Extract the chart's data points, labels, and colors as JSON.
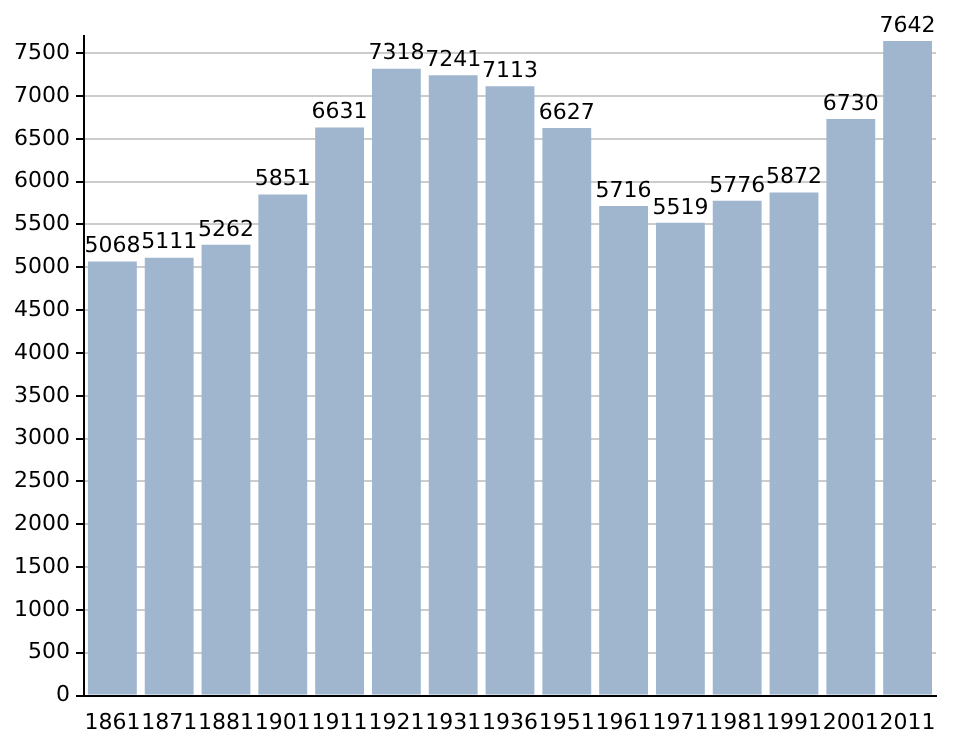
{
  "chart_data": {
    "type": "bar",
    "categories": [
      "1861",
      "1871",
      "1881",
      "1901",
      "1911",
      "1921",
      "1931",
      "1936",
      "1951",
      "1961",
      "1971",
      "1981",
      "1991",
      "2001",
      "2011"
    ],
    "values": [
      5068,
      5111,
      5262,
      5851,
      6631,
      7318,
      7241,
      7113,
      6627,
      5716,
      5519,
      5776,
      5872,
      6730,
      7642
    ],
    "color": "#a0b6cf",
    "ylim": [
      0,
      7700
    ],
    "yticks": [
      0,
      500,
      1000,
      1500,
      2000,
      2500,
      3000,
      3500,
      4000,
      4500,
      5000,
      5500,
      6000,
      6500,
      7000,
      7500
    ],
    "grid": "y",
    "data_labels": true
  }
}
